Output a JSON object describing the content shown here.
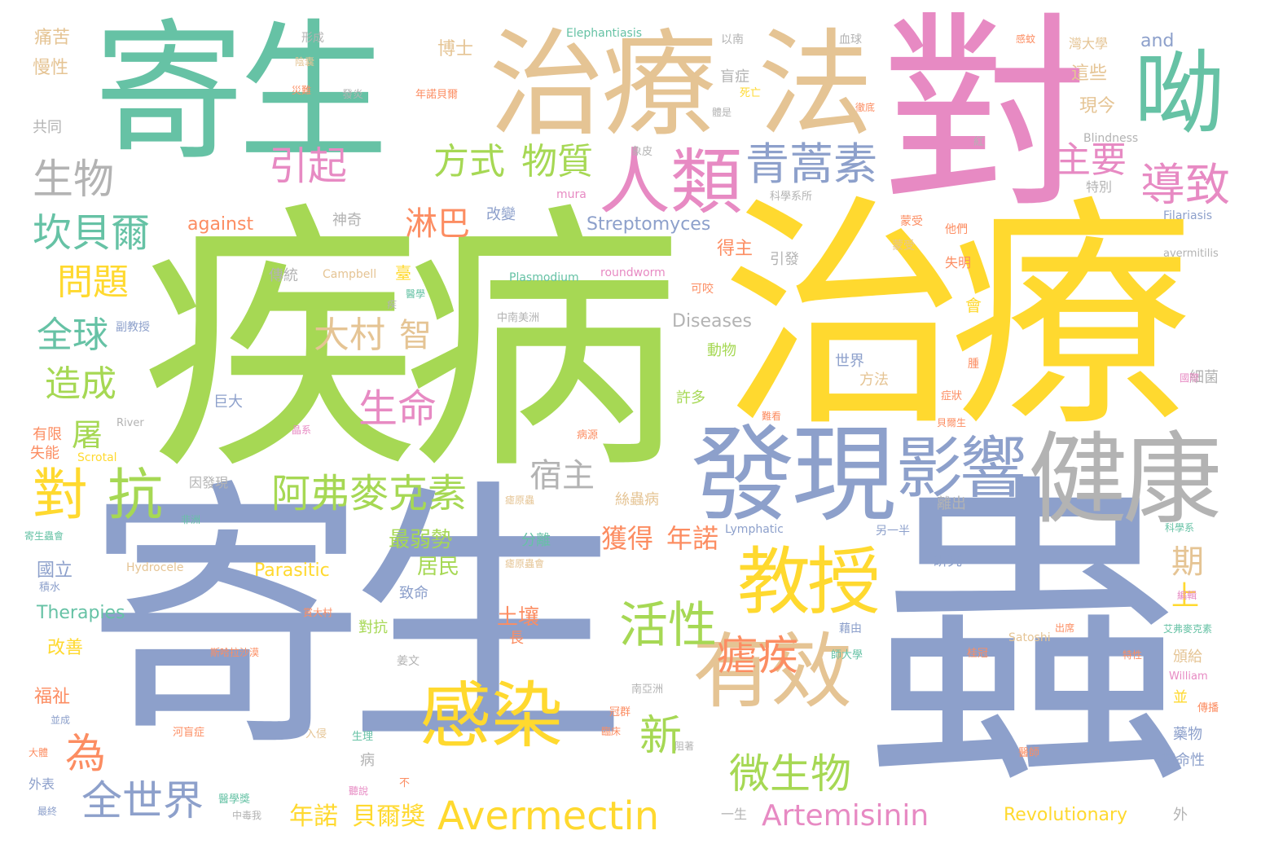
{
  "wordcloud": {
    "palette": [
      "#66c2a5",
      "#fc8d62",
      "#8da0cb",
      "#e78ac3",
      "#a6d854",
      "#ffd92f",
      "#e5c494",
      "#b3b3b3"
    ],
    "major": {
      "w1": "寄生",
      "w2": "疾病",
      "w3": "治療",
      "w4": "寄生",
      "w5": "蟲",
      "w6": "治療",
      "w7": "法",
      "w8": "對",
      "w9": "呦",
      "w10": "發現",
      "w11": "健康",
      "w12": "影響",
      "w13": "人類",
      "w14": "青蒿素",
      "w15": "有效",
      "w16": "感染",
      "w17": "教授",
      "w18": "Avermectin",
      "w19": "Artemisinin",
      "w20": "全世界",
      "w21": "對",
      "w22": "抗",
      "w23": "阿弗麥克素",
      "w24": "宿主",
      "w25": "大村",
      "w26": "智",
      "w27": "生命",
      "w28": "活性",
      "w29": "瘧疾",
      "w30": "微生物",
      "w31": "新",
      "w32": "為",
      "w33": "導致",
      "w34": "主要",
      "w35": "引起",
      "w36": "方式",
      "w37": "物質",
      "w38": "生物",
      "w39": "坎貝爾",
      "w40": "淋巴",
      "w41": "問題",
      "w42": "全球",
      "w43": "造成",
      "w44": "屠",
      "w45": "期",
      "w46": "上",
      "w47": "年諾",
      "w48": "貝爾獎",
      "w49": "獲得",
      "w50": "年諾",
      "w51": "Revolutionary",
      "w52": "Parasitic",
      "w53": "Therapies",
      "w54": "Streptomyces",
      "w55": "against",
      "w56": "Diseases",
      "w57": "and",
      "w58": "土壤",
      "w59": "最弱勢",
      "w60": "居民"
    },
    "minor": {
      "m1": "痛苦",
      "m2": "慢性",
      "m3": "共同",
      "m4": "有限",
      "m5": "失能",
      "m6": "國立",
      "m7": "改善",
      "m8": "福祉",
      "m9": "外表",
      "m10": "博士",
      "m11": "形成",
      "m12": "盲症",
      "m13": "以南",
      "m14": "血球",
      "m15": "灣大學",
      "m16": "這些",
      "m17": "現今",
      "m18": "特別",
      "m19": "失明",
      "m20": "Elephantiasis",
      "m21": "Blindness",
      "m22": "Filariasis",
      "m23": "avermitilis",
      "m24": "mura",
      "m25": "River",
      "m26": "Scrotal",
      "m27": "Hydrocele",
      "m28": "Campbell",
      "m29": "Plasmodium",
      "m30": "roundworm",
      "m31": "Lymphatic",
      "m32": "Satoshi",
      "m33": "William",
      "m34": "神奇",
      "m35": "傳統",
      "m36": "改變",
      "m37": "引發",
      "m38": "得主",
      "m39": "動物",
      "m40": "許多",
      "m41": "巨大",
      "m42": "細菌",
      "m43": "世界",
      "m44": "方法",
      "m45": "研究",
      "m46": "頒給",
      "m47": "藥物",
      "m48": "革命性",
      "m49": "致命",
      "m50": "分離",
      "m51": "離出",
      "m52": "因發現",
      "m53": "長",
      "m54": "病",
      "m55": "對抗",
      "m56": "臺",
      "m57": "會",
      "m58": "並",
      "m59": "外",
      "m60": "一生",
      "m61": "另一半",
      "m62": "絲蟲病",
      "m63": "可咬",
      "m64": "他們",
      "m65": "蒙受",
      "m66": "中南美洲",
      "m67": "副教授",
      "m68": "姜文",
      "m69": "南亞洲",
      "m70": "年諾貝爾",
      "m71": "發炎",
      "m72": "災難",
      "m73": "陰囊",
      "m74": "象皮",
      "m75": "紅",
      "m76": "腫",
      "m77": "河盲症",
      "m78": "醫學獎",
      "m79": "艾弗麥克素",
      "m80": "瘧原蟲",
      "m81": "寄生蟲會",
      "m82": "科學系",
      "m83": "桂冠",
      "m84": "冠群",
      "m85": "積水",
      "m86": "科學系所",
      "m87": "蒙受",
      "m88": "傳播",
      "m89": "徹底",
      "m90": "臨床",
      "m91": "難看",
      "m92": "藉由",
      "m93": "師大學",
      "m94": "特性",
      "m95": "出席",
      "m96": "醫師",
      "m97": "編輯",
      "m98": "阻著",
      "m99": "入侵",
      "m100": "生理",
      "m101": "病源",
      "m102": "晶系",
      "m103": "不",
      "m104": "最終",
      "m105": "大體",
      "m106": "並成",
      "m107": "中毒我",
      "m108": "斯哈拉沙漠",
      "m109": "賞大村",
      "m110": "醫學",
      "m111": "症狀",
      "m112": "貝爾生",
      "m113": "國際",
      "m114": "死亡",
      "m115": "體是",
      "m116": "感蚊",
      "m117": "瘧原蟲會",
      "m118": "非洲",
      "m119": "疾",
      "m120": "聽說"
    }
  }
}
